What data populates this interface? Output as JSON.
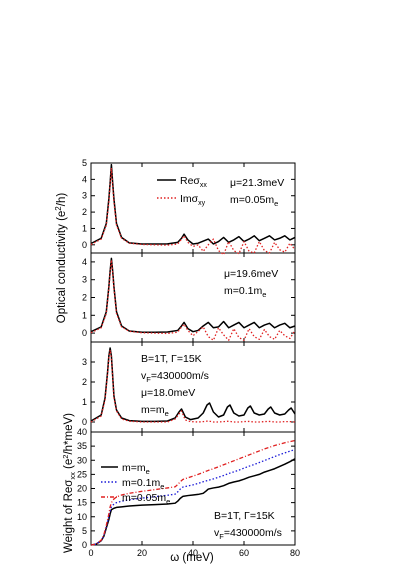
{
  "chart_data": [
    {
      "type": "line",
      "panel": "a",
      "xlim": [
        0,
        80
      ],
      "ylim": [
        -0.5,
        5
      ],
      "yticks": [
        0,
        1,
        2,
        3,
        4,
        5
      ],
      "legend": [
        "Reσxx",
        "Imσxy"
      ],
      "annotations": [
        "μ=21.3meV",
        "m=0.05me"
      ],
      "series": [
        {
          "name": "Reσxx",
          "style": "solid",
          "color": "#000000",
          "x": [
            0,
            4,
            6,
            7,
            7.5,
            8,
            8.5,
            9,
            10,
            12,
            15,
            20,
            25,
            30,
            34,
            35.5,
            36.5,
            38,
            40,
            42,
            46,
            48,
            50,
            52,
            54,
            56,
            58,
            60,
            62,
            64,
            66,
            68,
            70,
            72,
            74,
            76,
            78,
            80
          ],
          "y": [
            0.08,
            0.4,
            1.3,
            2.8,
            3.8,
            4.9,
            3.8,
            2.8,
            1.3,
            0.45,
            0.12,
            0.05,
            0.05,
            0.06,
            0.15,
            0.4,
            0.65,
            0.3,
            0.05,
            0.1,
            0.35,
            0.05,
            0.2,
            0.45,
            0.15,
            0.3,
            0.5,
            0.2,
            0.35,
            0.55,
            0.25,
            0.4,
            0.55,
            0.3,
            0.4,
            0.55,
            0.3,
            0.45
          ]
        },
        {
          "name": "Imσxy",
          "style": "dotted",
          "color": "#e02020",
          "x": [
            0,
            4,
            6,
            7,
            7.5,
            8,
            8.5,
            9,
            10,
            12,
            15,
            20,
            25,
            30,
            34,
            35.5,
            36.5,
            38,
            40,
            42,
            44,
            46,
            48,
            50,
            52,
            54,
            56,
            58,
            60,
            62,
            64,
            66,
            68,
            70,
            72,
            74,
            76,
            78,
            80
          ],
          "y": [
            0.02,
            0.35,
            1.2,
            2.6,
            3.7,
            4.7,
            3.6,
            2.6,
            1.2,
            0.4,
            0.1,
            0.02,
            0.0,
            -0.02,
            0.05,
            0.35,
            0.55,
            0.15,
            -0.1,
            0.0,
            -0.4,
            0.0,
            0.35,
            -0.35,
            -0.6,
            0.2,
            -0.35,
            -0.55,
            0.2,
            -0.4,
            -0.5,
            0.2,
            -0.35,
            -0.5,
            0.15,
            -0.3,
            -0.45,
            0.1,
            -0.3
          ]
        }
      ]
    },
    {
      "type": "line",
      "panel": "b",
      "xlim": [
        0,
        80
      ],
      "ylim": [
        -0.5,
        4.5
      ],
      "yticks": [
        0,
        1,
        2,
        3,
        4
      ],
      "annotations": [
        "μ=19.6meV",
        "m=0.1me"
      ],
      "series": [
        {
          "name": "Reσxx",
          "style": "solid",
          "color": "#000000",
          "x": [
            0,
            4,
            6,
            7,
            7.5,
            8,
            8.5,
            9,
            10,
            12,
            15,
            20,
            25,
            30,
            34,
            35.5,
            36.5,
            38,
            40,
            42,
            44,
            46,
            48,
            50,
            52,
            54,
            56,
            58,
            60,
            62,
            64,
            66,
            68,
            70,
            72,
            74,
            76,
            78,
            80
          ],
          "y": [
            0.08,
            0.35,
            1.2,
            2.6,
            3.5,
            4.2,
            3.5,
            2.6,
            1.2,
            0.4,
            0.12,
            0.05,
            0.05,
            0.06,
            0.15,
            0.4,
            0.6,
            0.25,
            0.08,
            0.15,
            0.4,
            0.6,
            0.3,
            0.35,
            0.65,
            0.3,
            0.45,
            0.6,
            0.3,
            0.45,
            0.6,
            0.3,
            0.45,
            0.55,
            0.3,
            0.45,
            0.55,
            0.3,
            0.4
          ]
        },
        {
          "name": "Imσxy",
          "style": "dotted",
          "color": "#e02020",
          "x": [
            0,
            4,
            6,
            7,
            7.5,
            8,
            8.5,
            9,
            10,
            12,
            15,
            20,
            25,
            30,
            34,
            35.5,
            36.5,
            38,
            40,
            42,
            44,
            46,
            48,
            50,
            52,
            54,
            56,
            58,
            60,
            62,
            64,
            66,
            68,
            70,
            72,
            74,
            76,
            78,
            80
          ],
          "y": [
            0.02,
            0.3,
            1.1,
            2.5,
            3.4,
            4.1,
            3.4,
            2.5,
            1.1,
            0.35,
            0.1,
            0.02,
            0.0,
            -0.02,
            0.05,
            0.35,
            0.5,
            0.15,
            -0.15,
            0.1,
            0.35,
            -0.2,
            -0.4,
            0.3,
            -0.1,
            -0.4,
            0.25,
            -0.25,
            -0.4,
            0.25,
            -0.2,
            -0.35,
            0.2,
            -0.2,
            -0.35,
            0.15,
            -0.15,
            -0.3,
            0.15
          ]
        }
      ]
    },
    {
      "type": "line",
      "panel": "c",
      "xlim": [
        0,
        80
      ],
      "ylim": [
        -0.5,
        4.0
      ],
      "yticks": [
        0,
        1,
        2,
        3
      ],
      "annotations": [
        "B=1T, Γ=15K",
        "vF=430000m/s",
        "μ=18.0meV",
        "m=me"
      ],
      "series": [
        {
          "name": "Reσxx",
          "style": "solid",
          "color": "#000000",
          "x": [
            0,
            4,
            5.5,
            6.5,
            7,
            7.5,
            8,
            9,
            10,
            12,
            15,
            20,
            25,
            30,
            33,
            34.5,
            35.5,
            37,
            39,
            42,
            44,
            45.5,
            46.5,
            48,
            50,
            52,
            53.5,
            54.5,
            56,
            58,
            60,
            61.5,
            62.5,
            64,
            66,
            68,
            69.5,
            70.5,
            72,
            74,
            76,
            77.5,
            78.5,
            80
          ],
          "y": [
            0.05,
            0.35,
            1.2,
            2.5,
            3.3,
            3.7,
            3.3,
            1.3,
            0.6,
            0.2,
            0.07,
            0.03,
            0.03,
            0.05,
            0.2,
            0.5,
            0.65,
            0.25,
            0.12,
            0.2,
            0.45,
            0.85,
            0.95,
            0.5,
            0.25,
            0.35,
            0.75,
            0.85,
            0.45,
            0.3,
            0.35,
            0.7,
            0.8,
            0.45,
            0.35,
            0.4,
            0.65,
            0.75,
            0.45,
            0.35,
            0.4,
            0.6,
            0.7,
            0.4
          ]
        },
        {
          "name": "Imσxy",
          "style": "dotted",
          "color": "#e02020",
          "x": [
            0,
            4,
            5.5,
            6.5,
            7,
            7.5,
            8,
            9,
            10,
            12,
            15,
            20,
            25,
            30,
            33,
            34.5,
            35.5,
            37,
            39,
            42,
            44,
            46,
            48,
            50,
            52,
            54,
            56,
            58,
            60,
            62,
            64,
            66,
            68,
            70,
            72,
            74,
            76,
            78,
            80
          ],
          "y": [
            0.0,
            0.3,
            1.1,
            2.4,
            3.2,
            3.6,
            3.2,
            1.2,
            0.55,
            0.15,
            0.04,
            0.0,
            0.0,
            0.0,
            0.15,
            0.4,
            0.55,
            0.1,
            0.02,
            0.0,
            0.02,
            0.05,
            0.0,
            0.0,
            0.02,
            0.04,
            0.0,
            0.0,
            0.02,
            0.03,
            0.0,
            0.0,
            0.02,
            0.03,
            0.0,
            0.0,
            0.02,
            0.02,
            0.0
          ]
        }
      ]
    },
    {
      "type": "line",
      "panel": "d",
      "xlim": [
        0,
        80
      ],
      "ylim": [
        0,
        40
      ],
      "yticks": [
        0,
        5,
        10,
        15,
        20,
        25,
        30,
        35,
        40
      ],
      "xticks": [
        0,
        20,
        40,
        60,
        80
      ],
      "xlabel": "ω (meV)",
      "legend": [
        "m=me",
        "m=0.1me",
        "m=0.05me"
      ],
      "annotations": [
        "B=1T, Γ=15K",
        "vF=430000m/s"
      ],
      "series": [
        {
          "name": "m=me",
          "style": "solid",
          "color": "#000000",
          "x": [
            0,
            2,
            4,
            5,
            6,
            7,
            7.5,
            8,
            9,
            10,
            12,
            15,
            20,
            25,
            30,
            33,
            34,
            35,
            36,
            38,
            40,
            42,
            44,
            45,
            46,
            48,
            50,
            52,
            54,
            56,
            58,
            60,
            62,
            64,
            66,
            68,
            70,
            72,
            74,
            76,
            78,
            80
          ],
          "y": [
            0,
            0.3,
            1.5,
            3,
            6,
            9,
            11,
            12.5,
            13,
            13.3,
            13.5,
            13.8,
            14.1,
            14.3,
            14.5,
            14.8,
            15.5,
            16.5,
            17.2,
            17.5,
            17.7,
            17.9,
            18.3,
            19,
            19.8,
            20.2,
            20.5,
            21,
            21.8,
            22.3,
            22.7,
            23.3,
            24,
            24.5,
            25,
            25.8,
            26.4,
            27,
            27.8,
            28.6,
            29.5,
            30.5
          ]
        },
        {
          "name": "m=0.1me",
          "style": "dotted",
          "color": "#1a1ad8",
          "x": [
            0,
            2,
            4,
            5,
            6,
            7,
            7.5,
            8,
            9,
            10,
            12,
            15,
            20,
            25,
            30,
            33,
            34,
            35,
            36,
            38,
            40,
            42,
            44,
            46,
            48,
            50,
            52,
            54,
            56,
            58,
            60,
            62,
            64,
            66,
            68,
            70,
            72,
            74,
            76,
            78,
            80
          ],
          "y": [
            0,
            0.3,
            1.6,
            3.2,
            6.5,
            10,
            12,
            13.5,
            14.5,
            15,
            15.5,
            16,
            16.6,
            17.1,
            17.6,
            18,
            18.8,
            19.8,
            20.5,
            20.9,
            21.3,
            21.8,
            22.4,
            22.9,
            23.4,
            24,
            24.6,
            25.3,
            25.9,
            26.5,
            27.2,
            27.9,
            28.5,
            29.2,
            29.9,
            30.6,
            31.3,
            32,
            32.6,
            33.2,
            33.8
          ]
        },
        {
          "name": "m=0.05me",
          "style": "dashdot",
          "color": "#e02020",
          "x": [
            0,
            2,
            4,
            5,
            6,
            7,
            7.5,
            8,
            9,
            10,
            12,
            15,
            20,
            25,
            30,
            33,
            34,
            35,
            36,
            38,
            40,
            42,
            44,
            46,
            48,
            50,
            52,
            54,
            56,
            58,
            60,
            62,
            64,
            66,
            68,
            70,
            72,
            74,
            76,
            78,
            80
          ],
          "y": [
            0,
            0.3,
            1.7,
            3.5,
            7,
            11,
            13.5,
            15,
            16.3,
            17,
            17.7,
            18.3,
            19,
            19.6,
            20.2,
            20.6,
            21.4,
            22.4,
            23.2,
            23.8,
            24.4,
            25,
            25.7,
            26.4,
            27,
            27.7,
            28.4,
            29.1,
            29.8,
            30.5,
            31.2,
            31.9,
            32.6,
            33.3,
            34,
            34.6,
            35.2,
            35.7,
            36.2,
            36.6,
            37
          ]
        }
      ]
    }
  ],
  "labels": {
    "y_shared": "Optical conductivity (e²/h)",
    "y_bottom": "Weight of Reσxx (e²/h*meV)"
  }
}
